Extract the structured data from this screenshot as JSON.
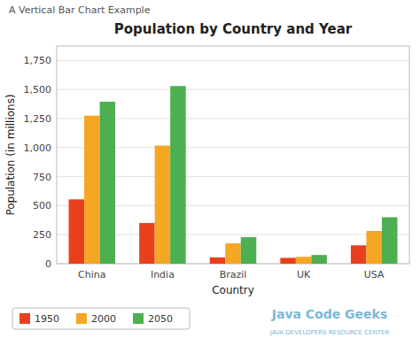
{
  "chart_data": {
    "type": "bar",
    "title": "Population by Country and Year",
    "x_label": "Country",
    "y_label": "Population (in millions)",
    "annotations": [
      "A Vertical Bar Chart Example",
      "Java Code Geeks",
      "JAVA DEVELOPERS RESOURCE CENTER"
    ],
    "categories": [
      "China",
      "India",
      "Brazil",
      "UK",
      "USA"
    ],
    "series": [
      {
        "name": "1950",
        "color": "#e8401c",
        "values": [
          554,
          350,
          54,
          50,
          158
        ]
      },
      {
        "name": "2000",
        "color": "#f5a623",
        "values": [
          1275,
          1017,
          175,
          59,
          282
        ]
      },
      {
        "name": "2050",
        "color": "#4caf50",
        "values": [
          1395,
          1530,
          228,
          75,
          400
        ]
      }
    ],
    "ylim": [
      0,
      1875
    ],
    "yticks": [
      0,
      250,
      500,
      750,
      {
        "value": 1000,
        "label": "1,000"
      },
      {
        "value": 1250,
        "label": "1,250"
      },
      {
        "value": 1500,
        "label": "1,500"
      },
      {
        "value": 1750,
        "label": "1,750"
      }
    ],
    "grid": true,
    "legend": "bottom"
  }
}
